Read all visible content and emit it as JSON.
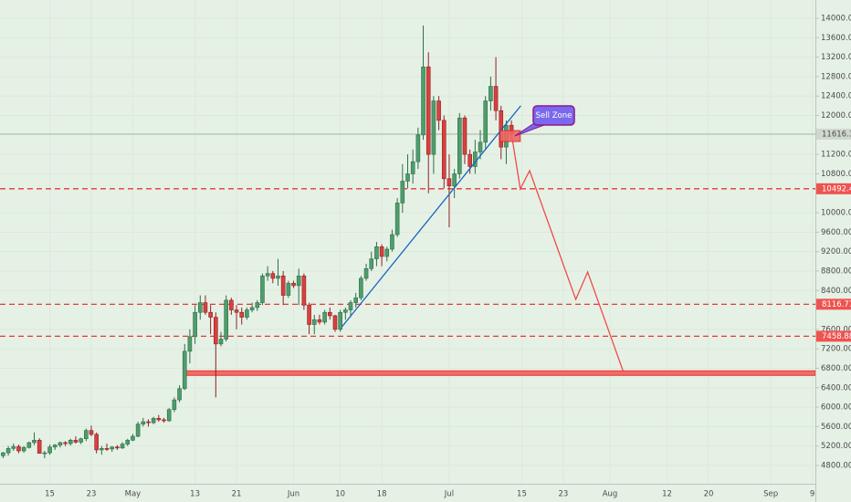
{
  "chart_data": {
    "type": "candlestick",
    "grid": true,
    "up_color": "#4f9d6d",
    "down_color": "#d9403f",
    "xlim": [
      -9.6,
      147.6
    ],
    "ylim": [
      4424,
      14376
    ],
    "xticks": [
      {
        "value": 0,
        "label": "15"
      },
      {
        "value": 8,
        "label": "23"
      },
      {
        "value": 16,
        "label": "May"
      },
      {
        "value": 28,
        "label": "13"
      },
      {
        "value": 36,
        "label": "21"
      },
      {
        "value": 47,
        "label": "Jun"
      },
      {
        "value": 56,
        "label": "10"
      },
      {
        "value": 64,
        "label": "18"
      },
      {
        "value": 77,
        "label": "Jul"
      },
      {
        "value": 91,
        "label": "15"
      },
      {
        "value": 99,
        "label": "23"
      },
      {
        "value": 108,
        "label": "Aug"
      },
      {
        "value": 119,
        "label": "12"
      },
      {
        "value": 127,
        "label": "20"
      },
      {
        "value": 139,
        "label": "Sep"
      },
      {
        "value": 147,
        "label": "9"
      }
    ],
    "yticks": [
      {
        "value": 4800,
        "label": "4800.00"
      },
      {
        "value": 5200,
        "label": "5200.00"
      },
      {
        "value": 5600,
        "label": "5600.00"
      },
      {
        "value": 6000,
        "label": "6000.00"
      },
      {
        "value": 6400,
        "label": "6400.00"
      },
      {
        "value": 6800,
        "label": "6800.00"
      },
      {
        "value": 7200,
        "label": "7200.00"
      },
      {
        "value": 7600,
        "label": "7600.00"
      },
      {
        "value": 8400,
        "label": "8400.00"
      },
      {
        "value": 8800,
        "label": "8800.00"
      },
      {
        "value": 9200,
        "label": "9200.00"
      },
      {
        "value": 9600,
        "label": "9600.00"
      },
      {
        "value": 10000,
        "label": "10000.00"
      },
      {
        "value": 10800,
        "label": "10800.00"
      },
      {
        "value": 11200,
        "label": "11200.00"
      },
      {
        "value": 12000,
        "label": "12000.00"
      },
      {
        "value": 12400,
        "label": "12400.00"
      },
      {
        "value": 12800,
        "label": "12800.00"
      },
      {
        "value": 13200,
        "label": "13200.00"
      },
      {
        "value": 13600,
        "label": "13600.00"
      },
      {
        "value": 14000,
        "label": "14000.00"
      }
    ],
    "x": [
      -9,
      -8,
      -7,
      -6,
      -5,
      -4,
      -3,
      -2,
      -1,
      0,
      1,
      2,
      3,
      4,
      5,
      6,
      7,
      8,
      9,
      10,
      11,
      12,
      13,
      14,
      15,
      16,
      17,
      18,
      19,
      20,
      21,
      22,
      23,
      24,
      25,
      26,
      27,
      28,
      29,
      30,
      31,
      32,
      33,
      34,
      35,
      36,
      37,
      38,
      39,
      40,
      41,
      42,
      43,
      44,
      45,
      46,
      47,
      48,
      49,
      50,
      51,
      52,
      53,
      54,
      55,
      56,
      57,
      58,
      59,
      60,
      61,
      62,
      63,
      64,
      65,
      66,
      67,
      68,
      69,
      70,
      71,
      72,
      73,
      74,
      75,
      76,
      77,
      78,
      79,
      80,
      81,
      82,
      83,
      84,
      85,
      86,
      87,
      88,
      89
    ],
    "open": [
      5000,
      5060,
      5150,
      5190,
      5100,
      5170,
      5270,
      5320,
      5050,
      5060,
      5180,
      5220,
      5270,
      5250,
      5320,
      5280,
      5350,
      5520,
      5440,
      5120,
      5150,
      5140,
      5180,
      5160,
      5240,
      5320,
      5400,
      5650,
      5700,
      5680,
      5770,
      5740,
      5720,
      5950,
      6150,
      6380,
      7150,
      7450,
      7950,
      8150,
      7950,
      7850,
      7300,
      7400,
      8200,
      8000,
      7950,
      7850,
      8000,
      8050,
      8150,
      8700,
      8750,
      8650,
      8700,
      8300,
      8550,
      8500,
      8700,
      8100,
      7700,
      7800,
      7750,
      7950,
      7880,
      7600,
      7950,
      8000,
      8150,
      8250,
      8650,
      8850,
      9050,
      9300,
      9100,
      9250,
      9550,
      10200,
      10650,
      10800,
      11050,
      11600,
      13000,
      11200,
      12300,
      11900,
      10700,
      10550,
      10800,
      11950,
      11200,
      10950,
      11250,
      11450,
      12300,
      12600,
      12100,
      11350,
      11800
    ],
    "high": [
      5080,
      5200,
      5250,
      5230,
      5200,
      5290,
      5480,
      5360,
      5100,
      5230,
      5240,
      5290,
      5300,
      5350,
      5400,
      5370,
      5560,
      5620,
      5480,
      5200,
      5250,
      5200,
      5220,
      5280,
      5350,
      5450,
      5700,
      5780,
      5750,
      5800,
      5840,
      5780,
      5980,
      6200,
      6450,
      7300,
      7600,
      8100,
      8300,
      8300,
      8100,
      7950,
      7550,
      8300,
      8250,
      8100,
      8050,
      8050,
      8150,
      8200,
      8750,
      8900,
      8800,
      9050,
      8800,
      8600,
      8600,
      8850,
      8750,
      8150,
      7900,
      7900,
      8000,
      8050,
      7900,
      8000,
      8050,
      8200,
      8350,
      8700,
      8950,
      9200,
      9400,
      9350,
      9300,
      9650,
      10300,
      11000,
      11200,
      11300,
      11750,
      13850,
      13300,
      12400,
      12400,
      12000,
      11200,
      10900,
      12050,
      12000,
      11300,
      11500,
      11700,
      12400,
      12800,
      13200,
      12200,
      11900,
      11900
    ],
    "low": [
      4950,
      5000,
      5100,
      5050,
      5060,
      5150,
      5220,
      5120,
      4950,
      5020,
      5120,
      5170,
      5200,
      5210,
      5250,
      5240,
      5300,
      5400,
      5050,
      5020,
      5100,
      5080,
      5120,
      5140,
      5200,
      5300,
      5380,
      5600,
      5600,
      5650,
      5700,
      5680,
      5700,
      5900,
      6100,
      6350,
      6900,
      7300,
      7800,
      7900,
      7500,
      6200,
      7250,
      7350,
      7900,
      7600,
      7700,
      7800,
      7950,
      7980,
      8100,
      8600,
      8550,
      8500,
      8100,
      8250,
      8450,
      8100,
      8000,
      7500,
      7500,
      7700,
      7700,
      7800,
      7550,
      7550,
      7800,
      7850,
      8050,
      8200,
      8600,
      8800,
      8900,
      8900,
      9000,
      9200,
      9500,
      10000,
      10500,
      10600,
      10900,
      11500,
      10400,
      10800,
      11700,
      10500,
      9700,
      10300,
      10700,
      11000,
      10800,
      10800,
      11100,
      11300,
      12100,
      11900,
      11100,
      11000,
      11500
    ],
    "close": [
      5060,
      5150,
      5190,
      5100,
      5170,
      5270,
      5320,
      5050,
      5060,
      5180,
      5220,
      5270,
      5250,
      5320,
      5280,
      5350,
      5520,
      5440,
      5120,
      5150,
      5140,
      5180,
      5160,
      5240,
      5320,
      5400,
      5650,
      5700,
      5680,
      5770,
      5740,
      5720,
      5950,
      6150,
      6380,
      7150,
      7450,
      7950,
      8150,
      7950,
      7850,
      7300,
      7400,
      8200,
      8000,
      7950,
      7850,
      8000,
      8050,
      8150,
      8700,
      8750,
      8650,
      8700,
      8300,
      8550,
      8500,
      8700,
      8100,
      7700,
      7800,
      7750,
      7950,
      7880,
      7600,
      7950,
      8000,
      8150,
      8250,
      8650,
      8850,
      9050,
      9300,
      9100,
      9250,
      9550,
      10200,
      10650,
      10800,
      11050,
      11600,
      13000,
      11200,
      12300,
      11900,
      10700,
      10550,
      10800,
      11950,
      11200,
      10950,
      11250,
      11450,
      12300,
      12600,
      12100,
      11350,
      11800,
      11616.39
    ],
    "last_price": 11616.39,
    "levels": [
      10492.48,
      8116.77,
      7458.88
    ],
    "support": {
      "value": 6700,
      "x": [
        26,
        147.6
      ]
    },
    "trendline": {
      "x": [
        56.3,
        90.8
      ],
      "y": [
        7650,
        12200
      ],
      "color": "#1565c0"
    },
    "projection": {
      "x": [
        89.1,
        90.7,
        92.5,
        101.4,
        103.7,
        110.5
      ],
      "y": [
        11559,
        10489,
        10864,
        8217,
        8780,
        6753
      ],
      "color": "#ef4b48"
    },
    "sell_zone": {
      "label": "Sell Zone",
      "x": [
        86.8,
        90.7
      ],
      "y": [
        11465,
        11690
      ]
    }
  }
}
